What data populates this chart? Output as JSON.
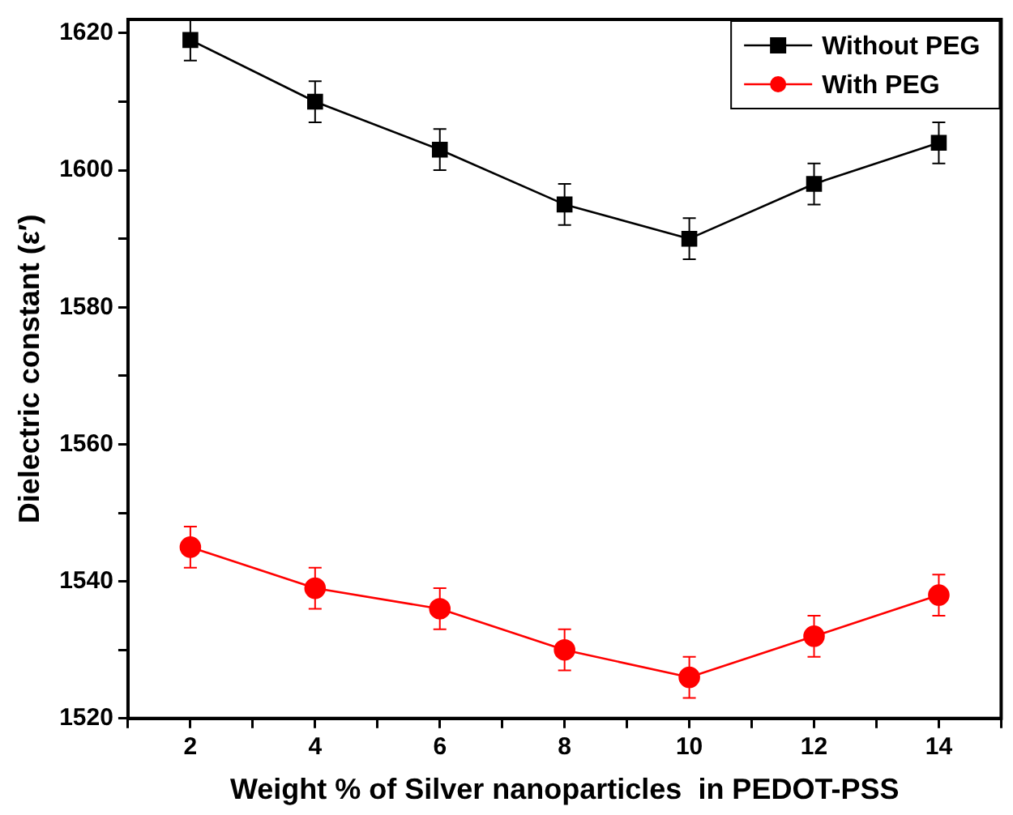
{
  "chart_data": {
    "type": "line",
    "xlabel": "Weight % of Silver nanoparticles  in PEDOT-PSS",
    "ylabel": "Dielectric constant (ε′)",
    "x": [
      2,
      4,
      6,
      8,
      10,
      12,
      14
    ],
    "xlim": [
      1,
      15
    ],
    "xticks": [
      {
        "value": 1,
        "label": null
      },
      2,
      {
        "value": 3,
        "label": null
      },
      4,
      {
        "value": 5,
        "label": null
      },
      6,
      {
        "value": 7,
        "label": null
      },
      8,
      {
        "value": 9,
        "label": null
      },
      10,
      {
        "value": 11,
        "label": null
      },
      12,
      {
        "value": 13,
        "label": null
      },
      14,
      {
        "value": 15,
        "label": null
      }
    ],
    "ylim": [
      1520,
      1622
    ],
    "yticks": [
      1520,
      {
        "value": 1530,
        "label": null
      },
      1540,
      {
        "value": 1550,
        "label": null
      },
      1560,
      {
        "value": 1570,
        "label": null
      },
      1580,
      {
        "value": 1590,
        "label": null
      },
      1600,
      {
        "value": 1610,
        "label": null
      },
      1620
    ],
    "series": [
      {
        "name": "Without PEG",
        "color": "#000000",
        "marker": "square",
        "values": [
          1619,
          1610,
          1603,
          1595,
          1590,
          1598,
          1604
        ],
        "errors": [
          3,
          3,
          3,
          3,
          3,
          3,
          3
        ]
      },
      {
        "name": "With PEG",
        "color": "#ff0000",
        "marker": "circle",
        "values": [
          1545,
          1539,
          1536,
          1530,
          1526,
          1532,
          1538
        ],
        "errors": [
          3,
          3,
          3,
          3,
          3,
          3,
          3
        ]
      }
    ],
    "grid": false,
    "legend": "top right",
    "line_style": "solid"
  }
}
